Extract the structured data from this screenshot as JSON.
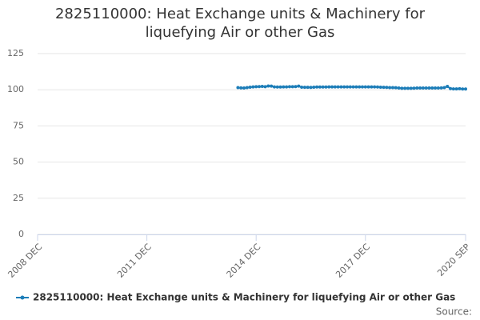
{
  "chart_data": {
    "type": "line",
    "title": "2825110000: Heat Exchange units & Machinery for liquefying Air or other Gas",
    "source": "Source:",
    "x": [
      "2014 JUN",
      "2014 JUL",
      "2014 AUG",
      "2014 SEP",
      "2014 OCT",
      "2014 NOV",
      "2014 DEC",
      "2015 JAN",
      "2015 FEB",
      "2015 MAR",
      "2015 APR",
      "2015 MAY",
      "2015 JUN",
      "2015 JUL",
      "2015 AUG",
      "2015 SEP",
      "2015 OCT",
      "2015 NOV",
      "2015 DEC",
      "2016 JAN",
      "2016 FEB",
      "2016 MAR",
      "2016 APR",
      "2016 MAY",
      "2016 JUN",
      "2016 JUL",
      "2016 AUG",
      "2016 SEP",
      "2016 OCT",
      "2016 NOV",
      "2016 DEC",
      "2017 JAN",
      "2017 FEB",
      "2017 MAR",
      "2017 APR",
      "2017 MAY",
      "2017 JUN",
      "2017 JUL",
      "2017 AUG",
      "2017 SEP",
      "2017 OCT",
      "2017 NOV",
      "2017 DEC",
      "2018 JAN",
      "2018 FEB",
      "2018 MAR",
      "2018 APR",
      "2018 MAY",
      "2018 JUN",
      "2018 JUL",
      "2018 AUG",
      "2018 SEP",
      "2018 OCT",
      "2018 NOV",
      "2018 DEC",
      "2019 JAN",
      "2019 FEB",
      "2019 MAR",
      "2019 APR",
      "2019 MAY",
      "2019 JUN",
      "2019 JUL",
      "2019 AUG",
      "2019 SEP",
      "2019 OCT",
      "2019 NOV",
      "2019 DEC",
      "2020 JAN",
      "2020 FEB",
      "2020 MAR",
      "2020 APR",
      "2020 MAY",
      "2020 JUN",
      "2020 JUL",
      "2020 AUG",
      "2020 SEP"
    ],
    "series": [
      {
        "name": "2825110000: Heat Exchange units & Machinery for liquefying Air or other Gas",
        "color": "#1c7db8",
        "values": [
          101.5,
          101.3,
          101.2,
          101.5,
          101.8,
          102,
          102.1,
          102.2,
          102.3,
          102.1,
          102.6,
          102.5,
          102,
          101.9,
          101.9,
          102,
          102,
          102.1,
          102.1,
          102.2,
          102.5,
          101.8,
          101.7,
          101.7,
          101.6,
          101.8,
          101.9,
          101.9,
          101.9,
          101.9,
          102,
          102,
          102,
          102,
          102,
          102,
          102,
          102,
          102,
          102,
          102,
          102,
          102,
          102,
          102,
          102,
          101.9,
          101.8,
          101.7,
          101.6,
          101.5,
          101.5,
          101.4,
          101.2,
          101,
          101,
          101,
          101,
          101.1,
          101.2,
          101.2,
          101.2,
          101.2,
          101.2,
          101.2,
          101.2,
          101.2,
          101.3,
          101.5,
          102.3,
          100.8,
          100.6,
          100.6,
          100.7,
          100.5,
          100.5
        ]
      }
    ],
    "xlim": [
      "2008 DEC",
      "2020 SEP"
    ],
    "xticks": [
      "2008 DEC",
      "2011 DEC",
      "2014 DEC",
      "2017 DEC",
      "2020 SEP"
    ],
    "ylim": [
      0,
      125
    ],
    "yticks": [
      0,
      25,
      50,
      75,
      100,
      125
    ],
    "grid": true,
    "legend": "bottom"
  }
}
